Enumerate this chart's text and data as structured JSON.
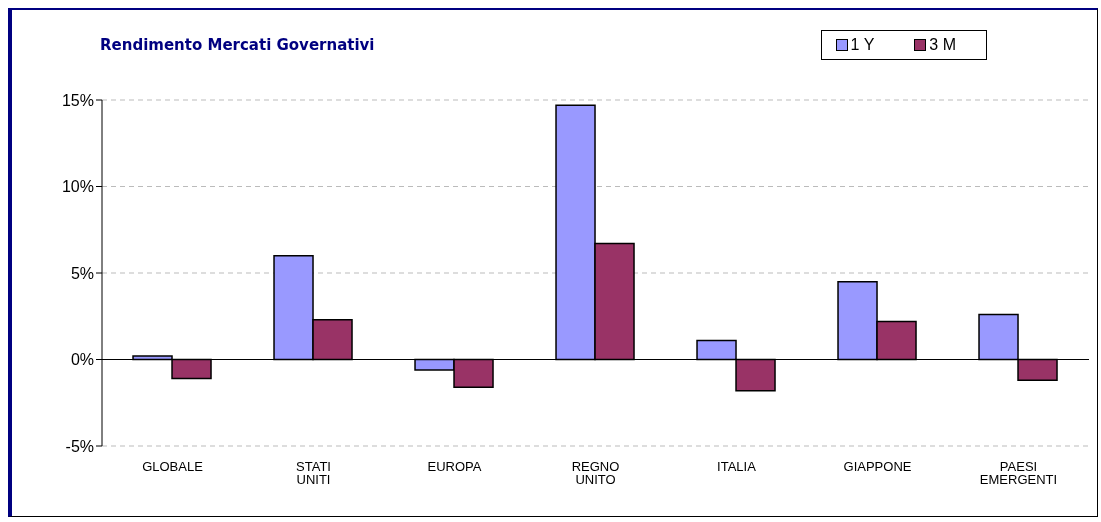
{
  "chart_data": {
    "type": "bar",
    "title": "Rendimento Mercati Governativi",
    "categories": [
      "GLOBALE",
      "STATI UNITI",
      "EUROPA",
      "REGNO UNITO",
      "ITALIA",
      "GIAPPONE",
      "PAESI EMERGENTI"
    ],
    "series": [
      {
        "name": "1 Y",
        "color": "#9999ff",
        "values": [
          0.2,
          6.0,
          -0.6,
          14.7,
          1.1,
          4.5,
          2.6
        ]
      },
      {
        "name": "3 M",
        "color": "#993366",
        "values": [
          -1.1,
          2.3,
          -1.6,
          6.7,
          -1.8,
          2.2,
          -1.2
        ]
      }
    ],
    "ylim": [
      -5,
      15
    ],
    "yticks": [
      {
        "value": -5,
        "label": "-5%"
      },
      {
        "value": 0,
        "label": "0%"
      },
      {
        "value": 5,
        "label": "5%"
      },
      {
        "value": 10,
        "label": "10%"
      },
      {
        "value": 15,
        "label": "15%"
      }
    ],
    "grid": "y",
    "legend": "top right"
  }
}
